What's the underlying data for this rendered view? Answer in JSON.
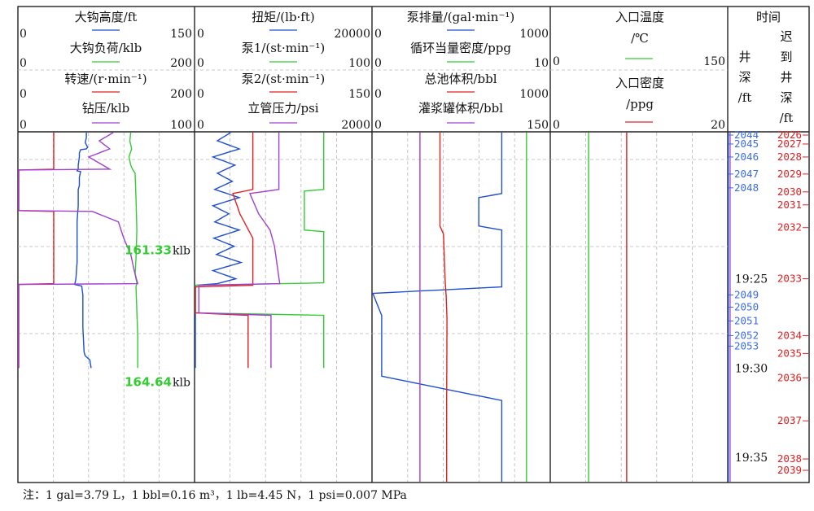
{
  "chart_data": {
    "type": "line",
    "note": "注：1 gal=3.79 L，1 bbl=0.16 m³，1 lb=4.45 N，1 psi=0.007 MPa",
    "tracks": [
      {
        "id": "t1",
        "curves": [
          {
            "label": "大钩高度/ft",
            "min": "0",
            "max": "150",
            "color": "#1f4fd0",
            "range": [
              0,
              150
            ],
            "points": [
              [
                0,
                58
              ],
              [
                6,
                58
              ],
              [
                12,
                57
              ],
              [
                18,
                59
              ],
              [
                20,
                58
              ],
              [
                21,
                53
              ],
              [
                25,
                52
              ],
              [
                30,
                52
              ],
              [
                40,
                51
              ],
              [
                45,
                51
              ],
              [
                47,
                50
              ],
              [
                48,
                53
              ],
              [
                55,
                52
              ],
              [
                65,
                52
              ],
              [
                70,
                51
              ],
              [
                90,
                51
              ],
              [
                110,
                50
              ],
              [
                140,
                50
              ],
              [
                160,
                50
              ],
              [
                180,
                49
              ],
              [
                187,
                48
              ],
              [
                189,
                54
              ],
              [
                200,
                55
              ],
              [
                240,
                55
              ],
              [
                270,
                56
              ],
              [
                275,
                57
              ],
              [
                280,
                61
              ],
              [
                290,
                62
              ]
            ]
          },
          {
            "label": "大钩负荷/klb",
            "min": "0",
            "max": "200",
            "color": "#33cc33",
            "range": [
              0,
              200
            ],
            "points": [
              [
                0,
                128
              ],
              [
                10,
                127
              ],
              [
                20,
                129
              ],
              [
                30,
                126
              ],
              [
                40,
                128
              ],
              [
                45,
                130
              ],
              [
                50,
                133
              ],
              [
                80,
                134
              ],
              [
                120,
                135
              ],
              [
                155,
                134
              ],
              [
                175,
                133
              ],
              [
                185,
                135
              ],
              [
                190,
                134
              ],
              [
                250,
                136
              ],
              [
                290,
                136
              ]
            ]
          },
          {
            "label": "转速/(r·min⁻¹)",
            "min": "0",
            "max": "200",
            "color": "#e02020",
            "range": [
              0,
              200
            ],
            "points": [
              [
                0,
                40
              ],
              [
                45,
                40
              ],
              [
                46,
                0
              ],
              [
                96,
                0
              ],
              [
                97,
                40
              ],
              [
                186,
                40
              ],
              [
                187,
                0
              ],
              [
                290,
                0
              ]
            ]
          },
          {
            "label": "钻压/klb",
            "min": "0",
            "max": "100",
            "color": "#a040d0",
            "range": [
              0,
              100
            ],
            "points": [
              [
                0,
                54
              ],
              [
                10,
                46
              ],
              [
                20,
                52
              ],
              [
                30,
                40
              ],
              [
                45,
                52
              ],
              [
                46,
                0
              ],
              [
                96,
                0
              ],
              [
                97,
                42
              ],
              [
                110,
                57
              ],
              [
                130,
                60
              ],
              [
                150,
                64
              ],
              [
                170,
                66
              ],
              [
                186,
                68
              ],
              [
                187,
                0
              ],
              [
                290,
                0
              ]
            ]
          }
        ]
      },
      {
        "id": "t2",
        "curves": [
          {
            "label": "扭矩/(lb·ft)",
            "min": "0",
            "max": "20000",
            "color": "#1f4fd0",
            "range": [
              0,
              20000
            ],
            "points": [
              [
                0,
                4000
              ],
              [
                10,
                2500
              ],
              [
                20,
                5000
              ],
              [
                30,
                2000
              ],
              [
                40,
                4500
              ],
              [
                50,
                2500
              ],
              [
                60,
                4200
              ],
              [
                70,
                2200
              ],
              [
                80,
                5000
              ],
              [
                90,
                2000
              ],
              [
                100,
                3800
              ],
              [
                110,
                2200
              ],
              [
                120,
                5000
              ],
              [
                130,
                2100
              ],
              [
                140,
                4400
              ],
              [
                150,
                2400
              ],
              [
                160,
                5200
              ],
              [
                170,
                2000
              ],
              [
                180,
                4600
              ],
              [
                186,
                2500
              ],
              [
                188,
                0
              ],
              [
                290,
                0
              ]
            ]
          },
          {
            "label": "泵1/(st·min⁻¹)",
            "min": "0",
            "max": "100",
            "color": "#33cc33",
            "range": [
              0,
              100
            ],
            "points": [
              [
                0,
                73
              ],
              [
                70,
                73
              ],
              [
                72,
                62
              ],
              [
                120,
                62
              ],
              [
                122,
                73
              ],
              [
                185,
                73
              ],
              [
                188,
                0
              ],
              [
                222,
                0
              ],
              [
                225,
                73
              ],
              [
                290,
                73
              ]
            ]
          },
          {
            "label": "泵2/(st·min⁻¹)",
            "min": "0",
            "max": "150",
            "color": "#e02020",
            "range": [
              0,
              150
            ],
            "points": [
              [
                0,
                49
              ],
              [
                70,
                49
              ],
              [
                75,
                32
              ],
              [
                100,
                38
              ],
              [
                130,
                49
              ],
              [
                188,
                49
              ],
              [
                190,
                0
              ],
              [
                222,
                0
              ],
              [
                225,
                45
              ],
              [
                290,
                45
              ]
            ]
          },
          {
            "label": "立管压力/psi",
            "min": "0",
            "max": "2000",
            "color": "#a040d0",
            "range": [
              0,
              2000
            ],
            "points": [
              [
                0,
                950
              ],
              [
                70,
                950
              ],
              [
                75,
                620
              ],
              [
                100,
                720
              ],
              [
                120,
                850
              ],
              [
                140,
                900
              ],
              [
                186,
                960
              ],
              [
                188,
                40
              ],
              [
                222,
                40
              ],
              [
                225,
                860
              ],
              [
                290,
                860
              ]
            ]
          }
        ]
      },
      {
        "id": "t3",
        "curves": [
          {
            "label": "泵排量/(gal·min⁻¹)",
            "min": "0",
            "max": "1000",
            "color": "#1f4fd0",
            "range": [
              0,
              1000
            ],
            "points": [
              [
                0,
                730
              ],
              [
                75,
                730
              ],
              [
                80,
                600
              ],
              [
                115,
                600
              ],
              [
                120,
                730
              ],
              [
                190,
                730
              ],
              [
                198,
                0
              ],
              [
                225,
                50
              ],
              [
                300,
                50
              ],
              [
                330,
                730
              ],
              [
                430,
                730
              ]
            ]
          },
          {
            "label": "循环当量密度/ppg",
            "min": "0",
            "max": "10",
            "color": "#33cc33",
            "range": [
              0,
              10
            ],
            "points": [
              [
                0,
                8.7
              ],
              [
                430,
                8.7
              ]
            ]
          },
          {
            "label": "总池体积/bbl",
            "min": "0",
            "max": "1000",
            "color": "#e02020",
            "range": [
              0,
              1000
            ],
            "points": [
              [
                0,
                380
              ],
              [
                115,
                380
              ],
              [
                125,
                400
              ],
              [
                185,
                410
              ],
              [
                200,
                415
              ],
              [
                230,
                420
              ],
              [
                330,
                418
              ],
              [
                430,
                418
              ]
            ]
          },
          {
            "label": "灌浆罐体积/bbl",
            "min": "0",
            "max": "150",
            "color": "#a040d0",
            "range": [
              0,
              150
            ],
            "points": [
              [
                0,
                40
              ],
              [
                430,
                40
              ]
            ]
          }
        ]
      },
      {
        "id": "t4",
        "curves": [
          {
            "label": "入口温度",
            "unit": "/℃",
            "min": "0",
            "max": "150",
            "color": "#33cc33",
            "range": [
              0,
              150
            ],
            "points": [
              [
                0,
                32
              ],
              [
                430,
                32
              ]
            ]
          },
          {
            "label": "入口密度",
            "unit": "/ppg",
            "min": "0",
            "max": "20",
            "color": "#e02020",
            "range": [
              0,
              20
            ],
            "points": [
              [
                0,
                8.6
              ],
              [
                430,
                8.6
              ]
            ]
          }
        ]
      }
    ],
    "time_column": {
      "title": "时间",
      "left_label": "井深/ft",
      "right_label": "迟到井深/ft",
      "times": [
        {
          "label": "19:25",
          "t": 180
        },
        {
          "label": "19:30",
          "t": 290
        },
        {
          "label": "19:35",
          "t": 400
        }
      ],
      "well_depths": [
        {
          "label": "2044",
          "t": 3
        },
        {
          "label": "2045",
          "t": 14
        },
        {
          "label": "2046",
          "t": 30
        },
        {
          "label": "2047",
          "t": 51
        },
        {
          "label": "2048",
          "t": 68
        },
        {
          "label": "2049",
          "t": 200
        },
        {
          "label": "2050",
          "t": 215
        },
        {
          "label": "2051",
          "t": 232
        },
        {
          "label": "2052",
          "t": 250
        },
        {
          "label": "2053",
          "t": 263
        }
      ],
      "lag_depths": [
        {
          "label": "2026",
          "t": 3
        },
        {
          "label": "2027",
          "t": 14
        },
        {
          "label": "2028",
          "t": 30
        },
        {
          "label": "2029",
          "t": 51
        },
        {
          "label": "2030",
          "t": 73
        },
        {
          "label": "2031",
          "t": 89
        },
        {
          "label": "2032",
          "t": 117
        },
        {
          "label": "2033",
          "t": 180
        },
        {
          "label": "2034",
          "t": 250
        },
        {
          "label": "2035",
          "t": 272
        },
        {
          "label": "2036",
          "t": 302
        },
        {
          "label": "2037",
          "t": 355
        },
        {
          "label": "2038",
          "t": 402
        },
        {
          "label": "2039",
          "t": 416
        }
      ]
    },
    "annotations": [
      {
        "value": "161.33",
        "unit": "klb",
        "t": 145
      },
      {
        "value": "164.64",
        "unit": "klb",
        "t": 307
      }
    ]
  }
}
